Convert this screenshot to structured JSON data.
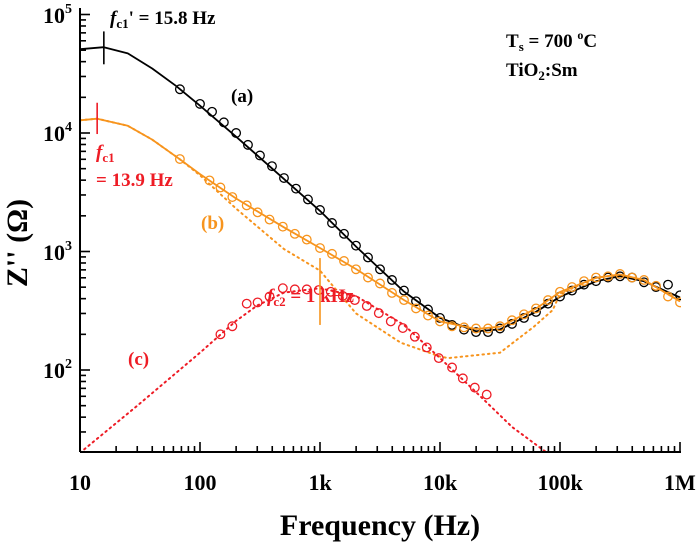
{
  "chart_data": {
    "type": "line",
    "xlabel": "Frequency (Hz)",
    "ylabel": "Z'' (Ω)",
    "x_scale": "log",
    "y_scale": "log",
    "xlim": [
      10,
      1000000
    ],
    "ylim": [
      20,
      100000
    ],
    "grid": false,
    "x_ticks": [
      {
        "value": 10,
        "label": "10"
      },
      {
        "value": 100,
        "label": "100"
      },
      {
        "value": 1000,
        "label": "1k"
      },
      {
        "value": 10000,
        "label": "10k"
      },
      {
        "value": 100000,
        "label": "100k"
      },
      {
        "value": 1000000,
        "label": "1M"
      }
    ],
    "y_ticks": [
      {
        "value": 100,
        "base": "10",
        "exp": "2"
      },
      {
        "value": 1000,
        "base": "10",
        "exp": "3"
      },
      {
        "value": 10000,
        "base": "10",
        "exp": "4"
      },
      {
        "value": 100000,
        "base": "10",
        "exp": "5"
      }
    ],
    "colors": {
      "a": "#000000",
      "b": "#f7941d",
      "c": "#ee1c25"
    },
    "series": [
      {
        "label": "(a)",
        "color": "#000000",
        "kind": "data",
        "points": [
          [
            68,
            23400
          ],
          [
            100,
            17600
          ],
          [
            126,
            15100
          ],
          [
            158,
            12300
          ],
          [
            200,
            10000
          ],
          [
            251,
            7940
          ],
          [
            316,
            6460
          ],
          [
            398,
            5250
          ],
          [
            501,
            4170
          ],
          [
            631,
            3390
          ],
          [
            794,
            2750
          ],
          [
            1000,
            2240
          ],
          [
            1259,
            1740
          ],
          [
            1585,
            1410
          ],
          [
            1995,
            1120
          ],
          [
            2512,
            891
          ],
          [
            3162,
            708
          ],
          [
            3981,
            575
          ],
          [
            5012,
            468
          ],
          [
            6310,
            380
          ],
          [
            7943,
            324
          ],
          [
            10000,
            275
          ],
          [
            12589,
            240
          ],
          [
            15849,
            219
          ],
          [
            19953,
            209
          ],
          [
            25119,
            209
          ],
          [
            31623,
            224
          ],
          [
            39811,
            245
          ],
          [
            50119,
            275
          ],
          [
            63096,
            309
          ],
          [
            79433,
            363
          ],
          [
            100000,
            417
          ],
          [
            125893,
            468
          ],
          [
            158489,
            525
          ],
          [
            199526,
            562
          ],
          [
            251189,
            603
          ],
          [
            316228,
            617
          ],
          [
            398107,
            603
          ],
          [
            501187,
            550
          ],
          [
            630957,
            501
          ],
          [
            794328,
            525
          ],
          [
            1000000,
            427
          ]
        ]
      },
      {
        "label": "(a)",
        "color": "#000000",
        "kind": "fit-solid",
        "points": [
          [
            10,
            51000
          ],
          [
            15.8,
            53000
          ],
          [
            25,
            47000
          ],
          [
            40,
            35000
          ],
          [
            63,
            25000
          ],
          [
            100,
            17000
          ],
          [
            200,
            9300
          ],
          [
            500,
            4100
          ],
          [
            1000,
            2200
          ],
          [
            2000,
            1100
          ],
          [
            3160,
            710
          ],
          [
            5000,
            460
          ],
          [
            10000,
            275
          ],
          [
            20000,
            212
          ],
          [
            31600,
            220
          ],
          [
            63100,
            310
          ],
          [
            100000,
            415
          ],
          [
            200000,
            560
          ],
          [
            316000,
            620
          ],
          [
            500000,
            560
          ],
          [
            1000000,
            410
          ]
        ]
      },
      {
        "label": "(b)",
        "color": "#f7941d",
        "kind": "data",
        "points": [
          [
            68,
            6030
          ],
          [
            120,
            3980
          ],
          [
            148,
            3470
          ],
          [
            186,
            2880
          ],
          [
            245,
            2450
          ],
          [
            302,
            2140
          ],
          [
            380,
            1860
          ],
          [
            490,
            1620
          ],
          [
            617,
            1410
          ],
          [
            776,
            1260
          ],
          [
            1000,
            1070
          ],
          [
            1259,
            955
          ],
          [
            1585,
            832
          ],
          [
            1995,
            708
          ],
          [
            2512,
            603
          ],
          [
            3162,
            537
          ],
          [
            3981,
            447
          ],
          [
            5012,
            389
          ],
          [
            6310,
            331
          ],
          [
            7943,
            288
          ],
          [
            10000,
            257
          ],
          [
            12589,
            234
          ],
          [
            15849,
            229
          ],
          [
            19953,
            224
          ],
          [
            25119,
            224
          ],
          [
            31623,
            234
          ],
          [
            39811,
            263
          ],
          [
            50119,
            295
          ],
          [
            63096,
            331
          ],
          [
            79433,
            389
          ],
          [
            100000,
            457
          ],
          [
            125893,
            501
          ],
          [
            158489,
            562
          ],
          [
            199526,
            603
          ],
          [
            251189,
            617
          ],
          [
            316228,
            646
          ],
          [
            398107,
            603
          ],
          [
            501187,
            575
          ],
          [
            630957,
            513
          ],
          [
            794328,
            417
          ],
          [
            1000000,
            372
          ]
        ]
      },
      {
        "label": "(b)",
        "color": "#f7941d",
        "kind": "fit-solid",
        "points": [
          [
            10,
            12800
          ],
          [
            13.9,
            13200
          ],
          [
            25,
            11500
          ],
          [
            40,
            8800
          ],
          [
            68,
            6000
          ],
          [
            100,
            4500
          ],
          [
            200,
            2800
          ],
          [
            500,
            1600
          ],
          [
            1000,
            1070
          ],
          [
            2000,
            710
          ],
          [
            5000,
            390
          ],
          [
            10000,
            257
          ],
          [
            20000,
            222
          ],
          [
            31600,
            232
          ],
          [
            63100,
            330
          ],
          [
            100000,
            455
          ],
          [
            200000,
            600
          ],
          [
            316000,
            640
          ],
          [
            500000,
            575
          ],
          [
            1000000,
            380
          ]
        ]
      },
      {
        "label": "(b)",
        "color": "#f7941d",
        "kind": "fit-dotted",
        "points": [
          [
            10,
            12800
          ],
          [
            13.9,
            13200
          ],
          [
            25,
            11500
          ],
          [
            40,
            8800
          ],
          [
            68,
            6000
          ],
          [
            100,
            4400
          ],
          [
            200,
            2300
          ],
          [
            500,
            1050
          ],
          [
            1000,
            690
          ],
          [
            2000,
            300
          ],
          [
            4700,
            170
          ],
          [
            10000,
            130
          ],
          [
            11700,
            126
          ],
          [
            31600,
            140
          ],
          [
            60000,
            230
          ],
          [
            87000,
            320
          ],
          [
            100000,
            440
          ],
          [
            200000,
            600
          ],
          [
            316000,
            640
          ],
          [
            500000,
            575
          ],
          [
            1000000,
            380
          ]
        ]
      },
      {
        "label": "(c)",
        "color": "#ee1c25",
        "kind": "data",
        "points": [
          [
            148,
            200
          ],
          [
            186,
            234
          ],
          [
            245,
            363
          ],
          [
            302,
            372
          ],
          [
            380,
            417
          ],
          [
            490,
            490
          ],
          [
            617,
            479
          ],
          [
            776,
            479
          ],
          [
            977,
            473
          ],
          [
            1230,
            457
          ],
          [
            1549,
            422
          ],
          [
            1950,
            389
          ],
          [
            2455,
            347
          ],
          [
            3090,
            302
          ],
          [
            3890,
            257
          ],
          [
            4900,
            226
          ],
          [
            6170,
            191
          ],
          [
            7760,
            155
          ],
          [
            9770,
            126
          ],
          [
            12600,
            105
          ],
          [
            15500,
            85
          ],
          [
            19500,
            71
          ],
          [
            24500,
            62
          ]
        ]
      },
      {
        "label": "(c)",
        "color": "#ee1c25",
        "kind": "fit-dotted",
        "points": [
          [
            10,
            20
          ],
          [
            30,
            50
          ],
          [
            100,
            140
          ],
          [
            200,
            260
          ],
          [
            300,
            350
          ],
          [
            500,
            450
          ],
          [
            1000,
            490
          ],
          [
            2000,
            420
          ],
          [
            5000,
            240
          ],
          [
            10000,
            126
          ],
          [
            20000,
            65
          ],
          [
            40000,
            33
          ],
          [
            78000,
            20
          ]
        ]
      }
    ],
    "markers": [
      {
        "name": "fc1-prime-marker",
        "f": 15.8,
        "z_range": [
          38000,
          72000
        ],
        "color": "#000000"
      },
      {
        "name": "fc1-marker",
        "f": 13.9,
        "z_range": [
          9800,
          18000
        ],
        "color": "#ee1c25"
      },
      {
        "name": "fc2-marker",
        "f": 1000,
        "z_range": [
          240,
          880
        ],
        "color": "#f7941d"
      }
    ],
    "annotations": {
      "fc1_prime": {
        "sym": "f",
        "sub": "c1",
        "text": "' = 15.8 Hz"
      },
      "fc1": {
        "sym": "f",
        "sub": "c1",
        "text": "= 13.9 Hz"
      },
      "fc2": {
        "sym": "f",
        "sub": "c2",
        "text": " = 1 kHz"
      },
      "label_a": "(a)",
      "label_b": "(b)",
      "label_c": "(c)",
      "ts": {
        "T": "T",
        "sub": "s",
        "text": " = 700 ",
        "sup": "o",
        "unit": "C"
      },
      "material": {
        "pre": "TiO",
        "sub": "2",
        "post": ":Sm"
      }
    }
  }
}
